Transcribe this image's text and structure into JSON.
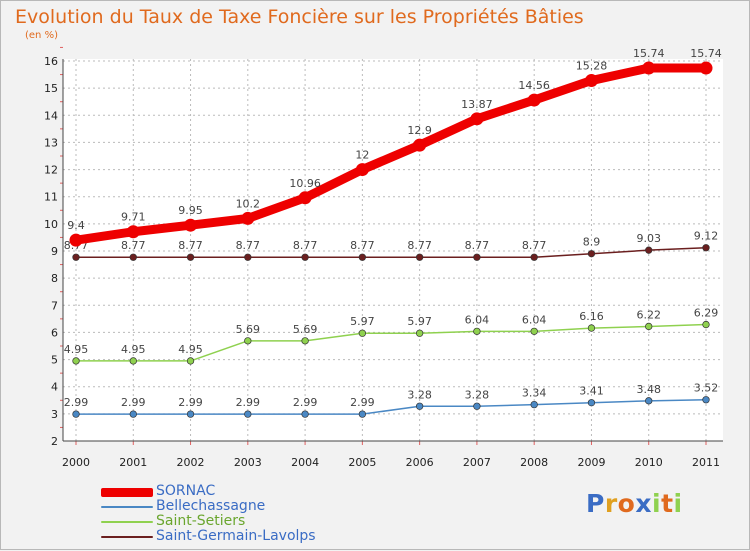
{
  "title": "Evolution du Taux de Taxe Foncière sur les Propriétés Bâties",
  "unit_label": "(en %)",
  "logo_text": "Proxiti",
  "colors": {
    "title": "#e06a1e",
    "background": "#f2f2f2",
    "grid": "#bbbbbb"
  },
  "chart_data": {
    "type": "line",
    "x": [
      "2000",
      "2001",
      "2002",
      "2003",
      "2004",
      "2005",
      "2006",
      "2007",
      "2008",
      "2009",
      "2010",
      "2011"
    ],
    "ylim": [
      2,
      16
    ],
    "yticks": [
      "2",
      "3",
      "4",
      "5",
      "6",
      "7",
      "8",
      "9",
      "10",
      "11",
      "12",
      "13",
      "14",
      "15",
      "16"
    ],
    "grid": true,
    "legend_position": "bottom-left",
    "series": [
      {
        "name": "SORNAC",
        "color": "#ee0000",
        "values": [
          9.4,
          9.71,
          9.95,
          10.2,
          10.96,
          12,
          12.9,
          13.87,
          14.56,
          15.28,
          15.74,
          15.74
        ],
        "labels": [
          "9.4",
          "9.71",
          "9.95",
          "10.2",
          "10.96",
          "12",
          "12.9",
          "13.87",
          "14.56",
          "15.28",
          "15.74",
          "15.74"
        ]
      },
      {
        "name": "Bellechassagne",
        "color": "#4a88c4",
        "values": [
          2.99,
          2.99,
          2.99,
          2.99,
          2.99,
          2.99,
          3.28,
          3.28,
          3.34,
          3.41,
          3.48,
          3.52
        ],
        "labels": [
          "2.99",
          "2.99",
          "2.99",
          "2.99",
          "2.99",
          "2.99",
          "3.28",
          "3.28",
          "3.34",
          "3.41",
          "3.48",
          "3.52"
        ]
      },
      {
        "name": "Saint-Setiers",
        "color": "#8fd14f",
        "values": [
          4.95,
          4.95,
          4.95,
          5.69,
          5.69,
          5.97,
          5.97,
          6.04,
          6.04,
          6.16,
          6.22,
          6.29
        ],
        "labels": [
          "4.95",
          "4.95",
          "4.95",
          "5.69",
          "5.69",
          "5.97",
          "5.97",
          "6.04",
          "6.04",
          "6.16",
          "6.22",
          "6.29"
        ]
      },
      {
        "name": "Saint-Germain-Lavolps",
        "color": "#6b1f1f",
        "values": [
          8.77,
          8.77,
          8.77,
          8.77,
          8.77,
          8.77,
          8.77,
          8.77,
          8.77,
          8.9,
          9.03,
          9.12
        ],
        "labels": [
          "8.77",
          "8.77",
          "8.77",
          "8.77",
          "8.77",
          "8.77",
          "8.77",
          "8.77",
          "8.77",
          "8.9",
          "9.03",
          "9.12"
        ]
      }
    ]
  }
}
